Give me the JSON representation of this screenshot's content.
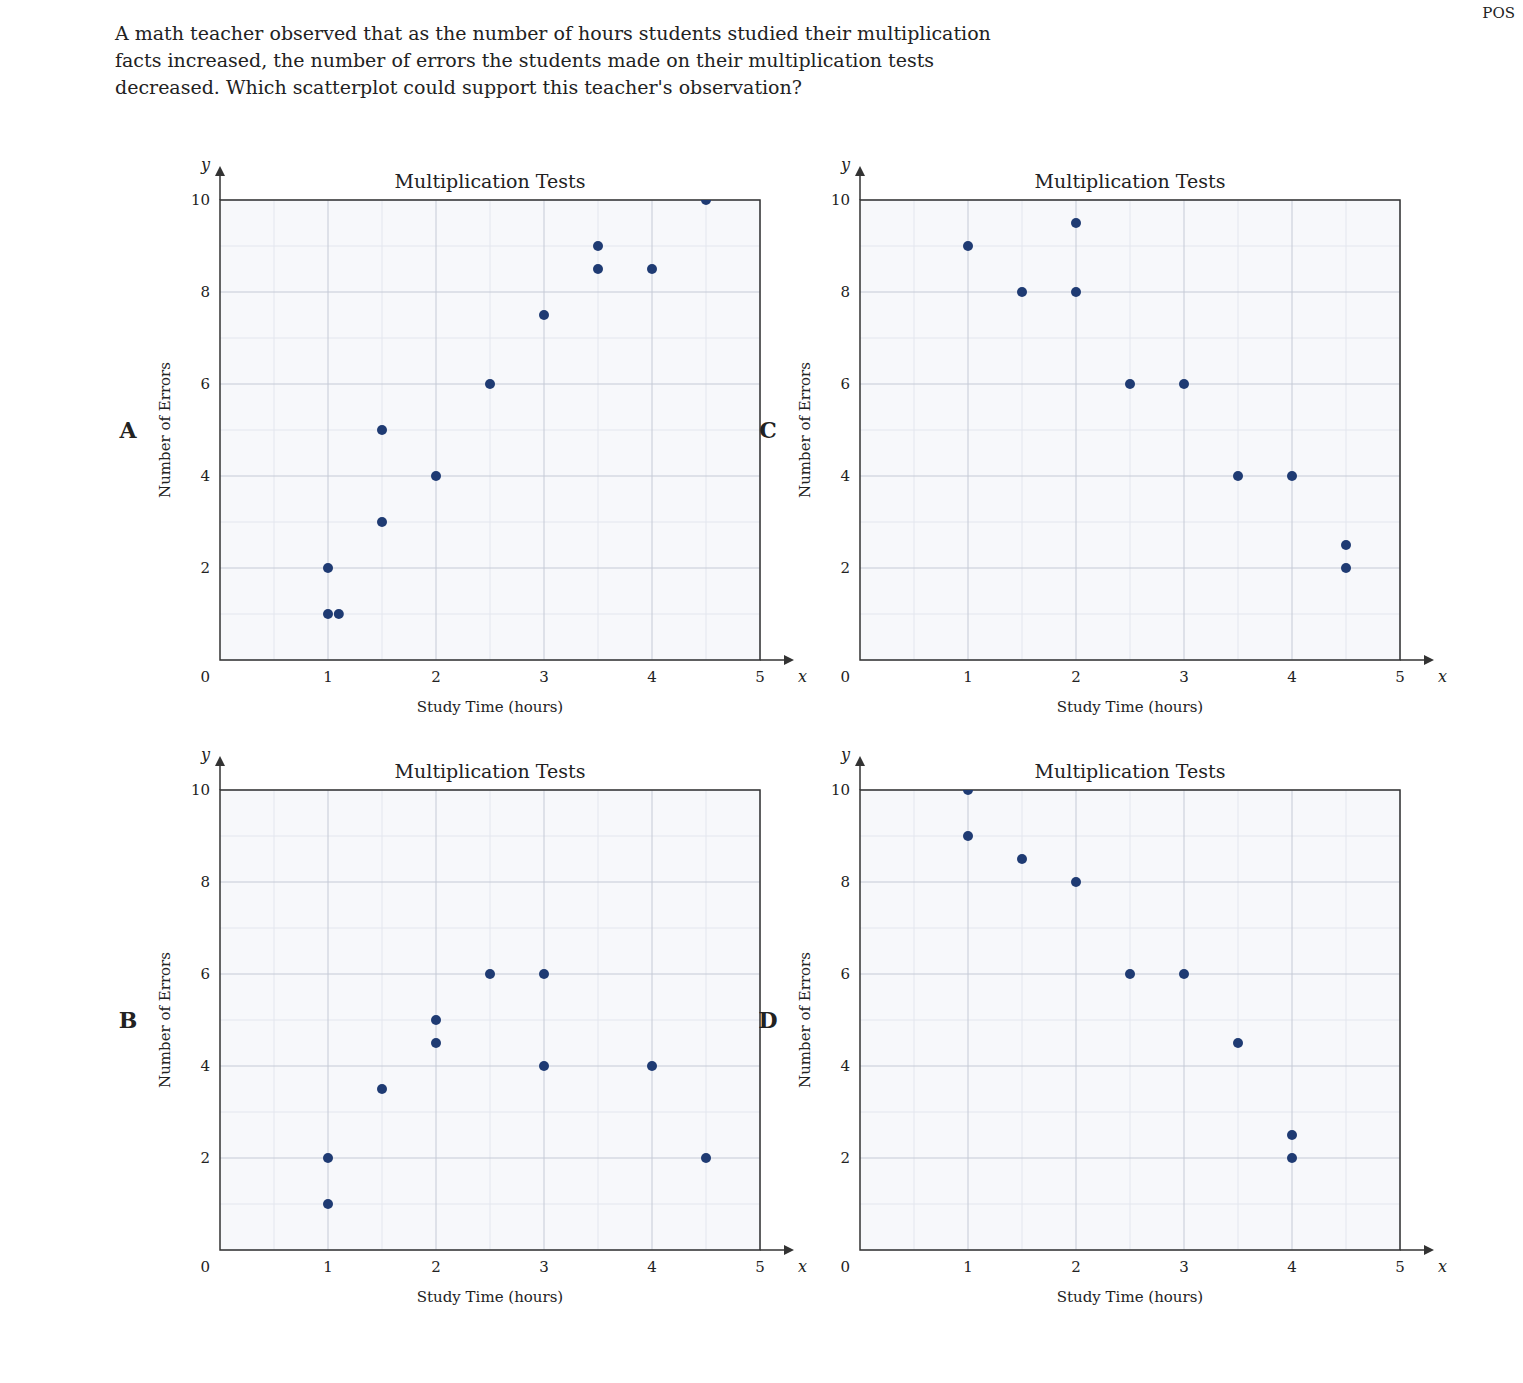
{
  "title": "A math teacher observed that as the number of hours students studied their multiplication\nfacts increased, the number of errors the students made on their multiplication tests\ndecreased. Which scatterplot could support this teacher's observation?",
  "annotations": [
    "POS"
  ],
  "chart_data": [
    {
      "type": "scatter",
      "title": "Multiplication Tests",
      "annotations": [
        "A",
        "x",
        "y"
      ],
      "x_label": "Study Time (hours)",
      "y_label": "Number of Errors",
      "x": [
        1.0,
        1.0,
        1.1,
        1.5,
        1.5,
        2.0,
        2.5,
        3.0,
        3.5,
        3.5,
        4.0,
        4.5
      ],
      "values": [
        1.0,
        2.0,
        1.0,
        3.0,
        5.0,
        4.0,
        6.0,
        7.5,
        8.5,
        9.0,
        8.5,
        10.0
      ],
      "xlim": [
        0,
        5
      ],
      "ylim": [
        0,
        10
      ],
      "xticks": [
        1,
        2,
        3,
        4,
        5
      ],
      "yticks": [
        0,
        2,
        4,
        6,
        8,
        10
      ],
      "grid": true
    },
    {
      "type": "scatter",
      "title": "Multiplication Tests",
      "annotations": [
        "C",
        "x",
        "y"
      ],
      "x_label": "Study Time (hours)",
      "y_label": "Number of Errors",
      "x": [
        1.0,
        1.5,
        2.0,
        2.0,
        2.5,
        3.0,
        3.5,
        4.0,
        4.5,
        4.5
      ],
      "values": [
        9.0,
        8.0,
        8.0,
        9.5,
        6.0,
        6.0,
        4.0,
        4.0,
        2.0,
        2.5
      ],
      "xlim": [
        0,
        5
      ],
      "ylim": [
        0,
        10
      ],
      "xticks": [
        1,
        2,
        3,
        4,
        5
      ],
      "yticks": [
        0,
        2,
        4,
        6,
        8,
        10
      ],
      "grid": true
    },
    {
      "type": "scatter",
      "title": "Multiplication Tests",
      "annotations": [
        "B",
        "x",
        "y"
      ],
      "x_label": "Study Time (hours)",
      "y_label": "Number of Errors",
      "x": [
        1.0,
        1.0,
        1.5,
        2.0,
        2.0,
        2.5,
        3.0,
        3.0,
        4.0,
        4.5
      ],
      "values": [
        1.0,
        2.0,
        3.5,
        4.5,
        5.0,
        6.0,
        6.0,
        4.0,
        4.0,
        2.0
      ],
      "xlim": [
        0,
        5
      ],
      "ylim": [
        0,
        10
      ],
      "xticks": [
        1,
        2,
        3,
        4,
        5
      ],
      "yticks": [
        0,
        2,
        4,
        6,
        8,
        10
      ],
      "grid": true
    },
    {
      "type": "scatter",
      "title": "Multiplication Tests",
      "annotations": [
        "D",
        "x",
        "y"
      ],
      "x_label": "Study Time (hours)",
      "y_label": "Number of Errors",
      "x": [
        1.0,
        1.0,
        1.5,
        2.0,
        2.5,
        3.0,
        3.5,
        4.0,
        4.0
      ],
      "values": [
        10.0,
        9.0,
        8.5,
        8.0,
        6.0,
        6.0,
        4.5,
        2.0,
        2.5
      ],
      "xlim": [
        0,
        5
      ],
      "ylim": [
        0,
        10
      ],
      "xticks": [
        1,
        2,
        3,
        4,
        5
      ],
      "yticks": [
        0,
        2,
        4,
        6,
        8,
        10
      ],
      "grid": true
    }
  ]
}
